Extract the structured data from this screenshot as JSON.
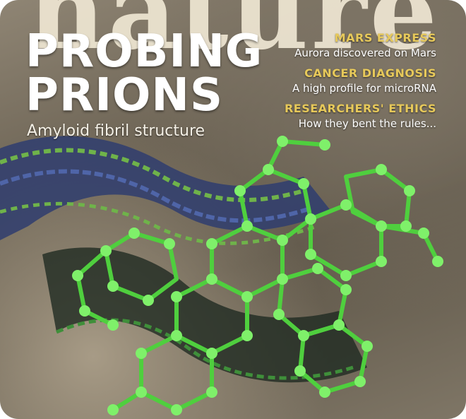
{
  "masthead": "nature",
  "cover_story": {
    "headline_line1": "PROBING",
    "headline_line2": "PRIONS",
    "subhead": "Amyloid fibril structure"
  },
  "cover_lines": [
    {
      "title": "MARS EXPRESS",
      "subtitle": "Aurora discovered on Mars"
    },
    {
      "title": "CANCER DIAGNOSIS",
      "subtitle": "A high profile for microRNA"
    },
    {
      "title": "RESEARCHERS' ETHICS",
      "subtitle": "How they bent the rules..."
    }
  ],
  "colors": {
    "headline": "#ffffff",
    "cover_line_title": "#e7c95a",
    "molecule_green": "#5fd64a",
    "fibril_blue": "#3c4f8a",
    "background": "#6c6354"
  },
  "image_elements": [
    "amyloid-fibril-artwork",
    "molecular-structure-artwork"
  ]
}
